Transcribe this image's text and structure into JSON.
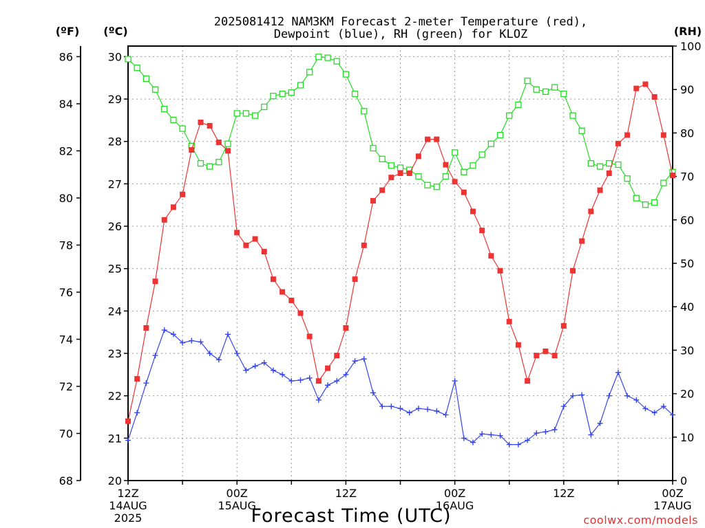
{
  "chart_data": {
    "type": "line",
    "title": [
      "2025081412 NAM3KM Forecast 2-meter Temperature (red),",
      "Dewpoint (blue), RH (green) for KLOZ"
    ],
    "xlabel": "Forecast Time (UTC)",
    "units": {
      "f": "(ºF)",
      "c": "(ºC)",
      "rh": "(RH)"
    },
    "credit": "coolwx.com/models",
    "x": {
      "start": "2025-08-14T12:00Z",
      "end": "2025-08-17T00:00Z",
      "step_hours": 1
    },
    "x_ticks": [
      {
        "hour": 0,
        "lines": [
          "12Z",
          "14AUG",
          "2025"
        ]
      },
      {
        "hour": 12,
        "lines": [
          "00Z",
          "15AUG"
        ]
      },
      {
        "hour": 24,
        "lines": [
          "12Z"
        ]
      },
      {
        "hour": 36,
        "lines": [
          "00Z",
          "16AUG"
        ]
      },
      {
        "hour": 48,
        "lines": [
          "12Z"
        ]
      },
      {
        "hour": 60,
        "lines": [
          "00Z",
          "17AUG"
        ]
      }
    ],
    "y_c": {
      "range": [
        20,
        30.25
      ],
      "ticks": [
        "20",
        "21",
        "22",
        "23",
        "24",
        "25",
        "26",
        "27",
        "28",
        "29",
        "30"
      ]
    },
    "y_f": {
      "ticks": [
        "68",
        "70",
        "72",
        "74",
        "76",
        "78",
        "80",
        "82",
        "84",
        "86"
      ]
    },
    "y_rh": {
      "range": [
        0,
        100
      ],
      "ticks": [
        "0",
        "10",
        "20",
        "30",
        "40",
        "50",
        "60",
        "70",
        "80",
        "90",
        "100"
      ]
    },
    "grid": true,
    "colors": {
      "temperature": "#ee3333",
      "dewpoint": "#3344ee",
      "rh": "#22dd22",
      "grid": "#999999"
    },
    "series": [
      {
        "name": "Temperature",
        "axis": "c",
        "color": "#ee3333",
        "marker": "square-filled",
        "values": [
          21.4,
          22.4,
          23.6,
          24.7,
          26.15,
          26.45,
          26.75,
          27.8,
          28.45,
          28.37,
          27.98,
          27.78,
          25.85,
          25.55,
          25.7,
          25.4,
          24.75,
          24.45,
          24.25,
          23.95,
          23.4,
          22.35,
          22.65,
          22.95,
          23.6,
          24.75,
          25.55,
          26.6,
          26.85,
          27.15,
          27.25,
          27.25,
          27.65,
          28.05,
          28.05,
          27.45,
          27.05,
          26.8,
          26.35,
          25.9,
          25.3,
          24.95,
          23.75,
          23.2,
          22.35,
          22.95,
          23.05,
          22.95,
          23.65,
          24.95,
          25.65,
          26.35,
          26.85,
          27.25,
          27.95,
          28.15,
          29.25,
          29.35,
          29.05,
          28.15,
          27.2
        ],
        "labels": [
          "Temperature (red)"
        ]
      },
      {
        "name": "Dewpoint",
        "axis": "c",
        "color": "#3344ee",
        "marker": "plus",
        "values": [
          20.95,
          21.6,
          22.3,
          22.95,
          23.55,
          23.45,
          23.25,
          23.3,
          23.27,
          23.0,
          22.85,
          23.45,
          23.0,
          22.6,
          22.7,
          22.78,
          22.6,
          22.5,
          22.35,
          22.37,
          22.42,
          21.9,
          22.25,
          22.35,
          22.5,
          22.82,
          22.87,
          22.07,
          21.75,
          21.75,
          21.7,
          21.6,
          21.7,
          21.68,
          21.64,
          21.55,
          22.35,
          21.0,
          20.9,
          21.1,
          21.08,
          21.06,
          20.85,
          20.85,
          20.95,
          21.12,
          21.15,
          21.2,
          21.75,
          22.0,
          22.02,
          21.08,
          21.35,
          22.0,
          22.55,
          22.0,
          21.9,
          21.7,
          21.6,
          21.75,
          21.55
        ],
        "labels": [
          "Dewpoint (blue)"
        ]
      },
      {
        "name": "RH",
        "axis": "rh",
        "color": "#22dd22",
        "marker": "square-open",
        "values": [
          97,
          95,
          92.5,
          90,
          85.5,
          83,
          81,
          77,
          73,
          72.3,
          73.3,
          77.5,
          84.5,
          84.5,
          84,
          86,
          88.5,
          89,
          89.3,
          91,
          94,
          97.5,
          97.3,
          96.5,
          93.5,
          89,
          85,
          76.5,
          74,
          72.5,
          72,
          71.5,
          70,
          68,
          67.6,
          70,
          75.5,
          71,
          72.5,
          75,
          77.5,
          79.5,
          84,
          86.5,
          92,
          90,
          89.5,
          90.5,
          89,
          84,
          80.5,
          73,
          72.3,
          73,
          72.7,
          69.5,
          65,
          63.5,
          64,
          68.5,
          71
        ]
      }
    ]
  }
}
